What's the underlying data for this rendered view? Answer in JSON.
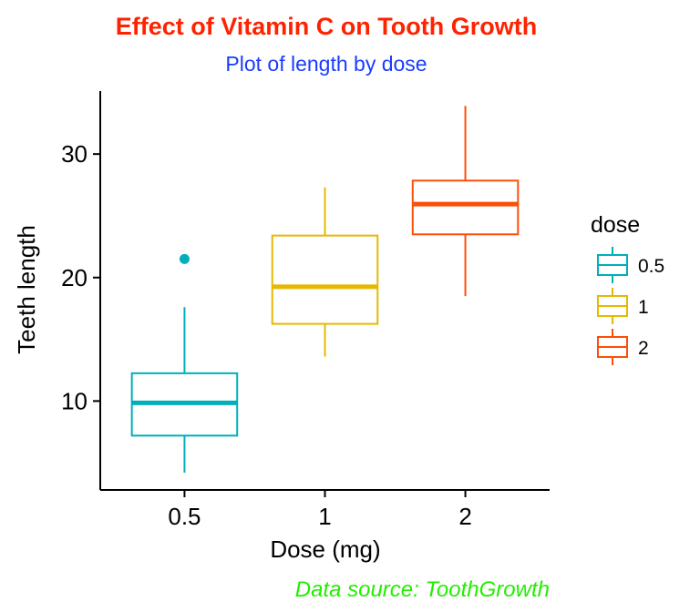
{
  "chart_data": {
    "type": "boxplot",
    "title": "Effect of Vitamin C on Tooth Growth",
    "subtitle": "Plot of length by dose",
    "caption": "Data source: ToothGrowth",
    "xlabel": "Dose (mg)",
    "ylabel": "Teeth length",
    "ylim": [
      2.8,
      35.1
    ],
    "yticks": [
      10,
      20,
      30
    ],
    "categories": [
      "0.5",
      "1",
      "2"
    ],
    "boxes": [
      {
        "category": "0.5",
        "min": 4.2,
        "q1": 7.2,
        "median": 9.85,
        "q3": 12.25,
        "max": 17.6,
        "outliers": [
          21.5
        ]
      },
      {
        "category": "1",
        "min": 13.6,
        "q1": 16.25,
        "median": 19.25,
        "q3": 23.4,
        "max": 27.3,
        "outliers": []
      },
      {
        "category": "2",
        "min": 18.5,
        "q1": 23.5,
        "median": 25.95,
        "q3": 27.85,
        "max": 33.9,
        "outliers": []
      }
    ],
    "legend": {
      "title": "dose",
      "position": "right",
      "entries": [
        "0.5",
        "1",
        "2"
      ]
    },
    "grid": false
  },
  "colors": {
    "title": "#ff2200",
    "subtitle": "#1a3cff",
    "caption": "#22ee00",
    "series": [
      "#00afbb",
      "#e7b800",
      "#fc4e07"
    ],
    "axis": "#000000"
  }
}
